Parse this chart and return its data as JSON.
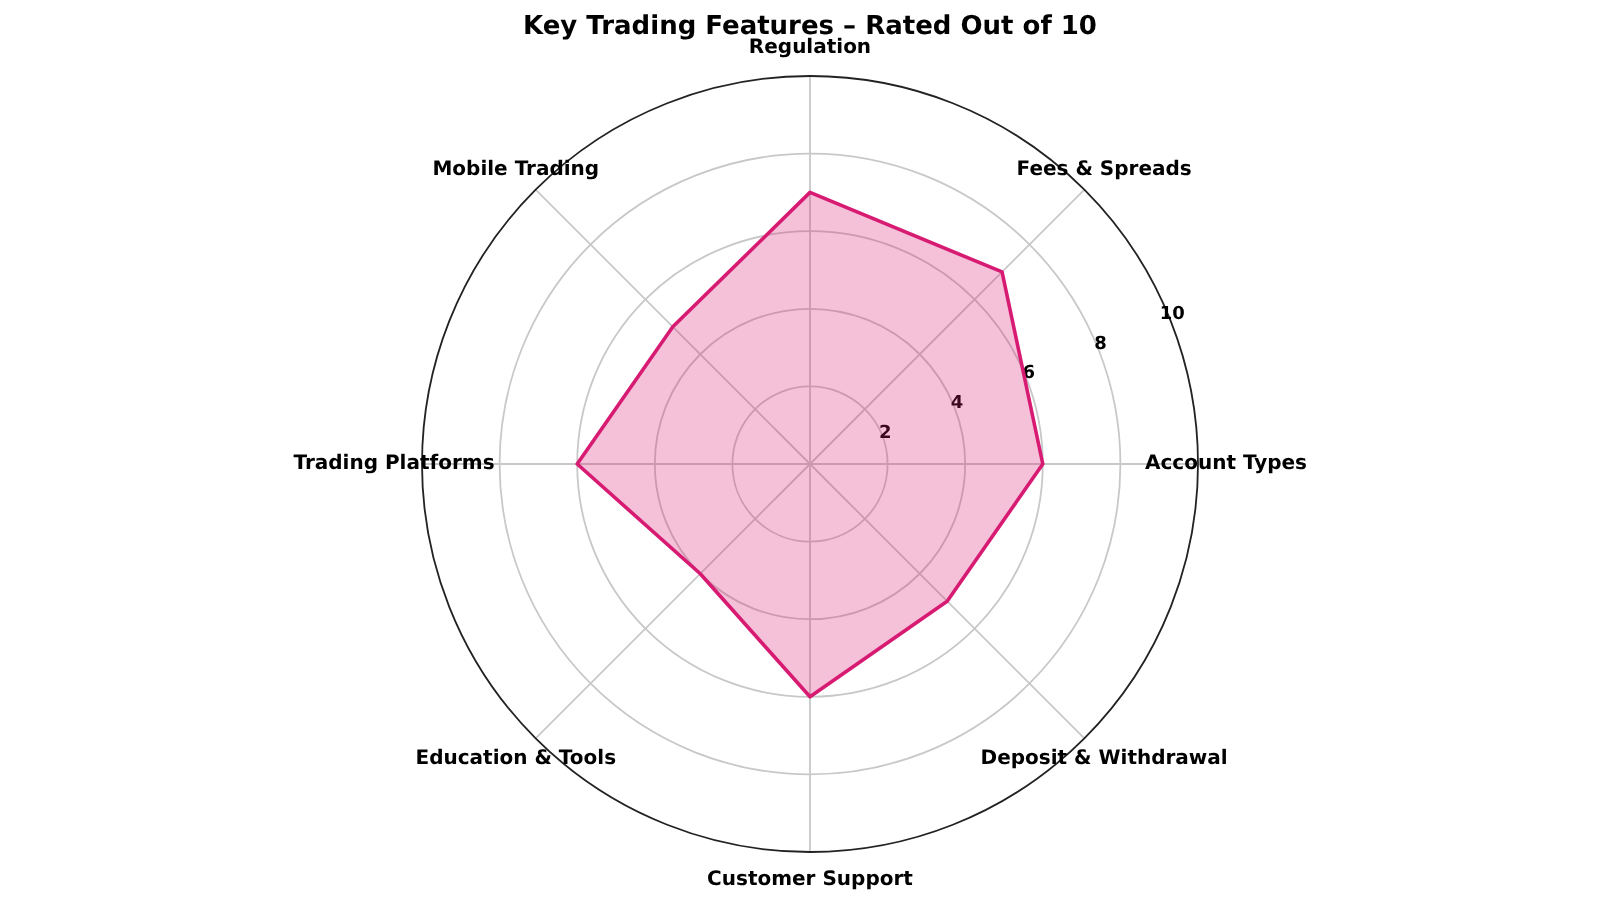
{
  "chart_data": {
    "type": "radar",
    "title": "Key Trading Features – Rated Out of 10",
    "categories": [
      "Regulation",
      "Fees & Spreads",
      "Account Types",
      "Deposit & Withdrawal",
      "Customer Support",
      "Education & Tools",
      "Trading Platforms",
      "Mobile Trading"
    ],
    "series": [
      {
        "color": "#d81b72",
        "values": [
          7,
          7,
          6,
          5,
          6,
          4,
          6,
          5
        ]
      }
    ],
    "ylim": [
      0,
      10
    ],
    "yticks": [
      2,
      4,
      6,
      8,
      10
    ],
    "grid": true,
    "marker": "none",
    "line_style": "solid"
  }
}
